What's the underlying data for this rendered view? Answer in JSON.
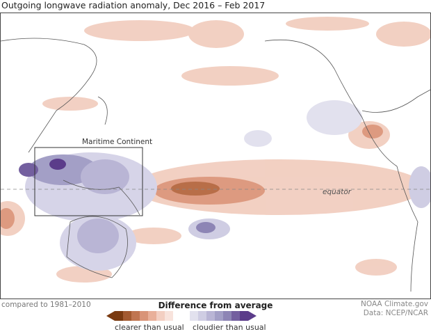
{
  "title": "Outgoing longwave radiation anomaly, Dec 2016 – Feb 2017",
  "map": {
    "region_label": "Maritime Continent",
    "equator_label": "equator"
  },
  "footer": {
    "baseline": "compared to 1981–2010",
    "credit1": "NOAA Climate.gov",
    "credit2": "Data: NCEP/NCAR"
  },
  "legend": {
    "title": "Difference from average",
    "left_label": "clearer than usual",
    "right_label": "cloudier than usual",
    "colors": [
      "#7a3a10",
      "#a35a30",
      "#c07550",
      "#d99478",
      "#e9b09a",
      "#f3cfc2",
      "#f8e3dc",
      "#ffffff",
      "#e2e1ee",
      "#cfcde3",
      "#b9b5d5",
      "#a39fc6",
      "#8d85b5",
      "#735f9f",
      "#5b3c8a"
    ]
  }
}
